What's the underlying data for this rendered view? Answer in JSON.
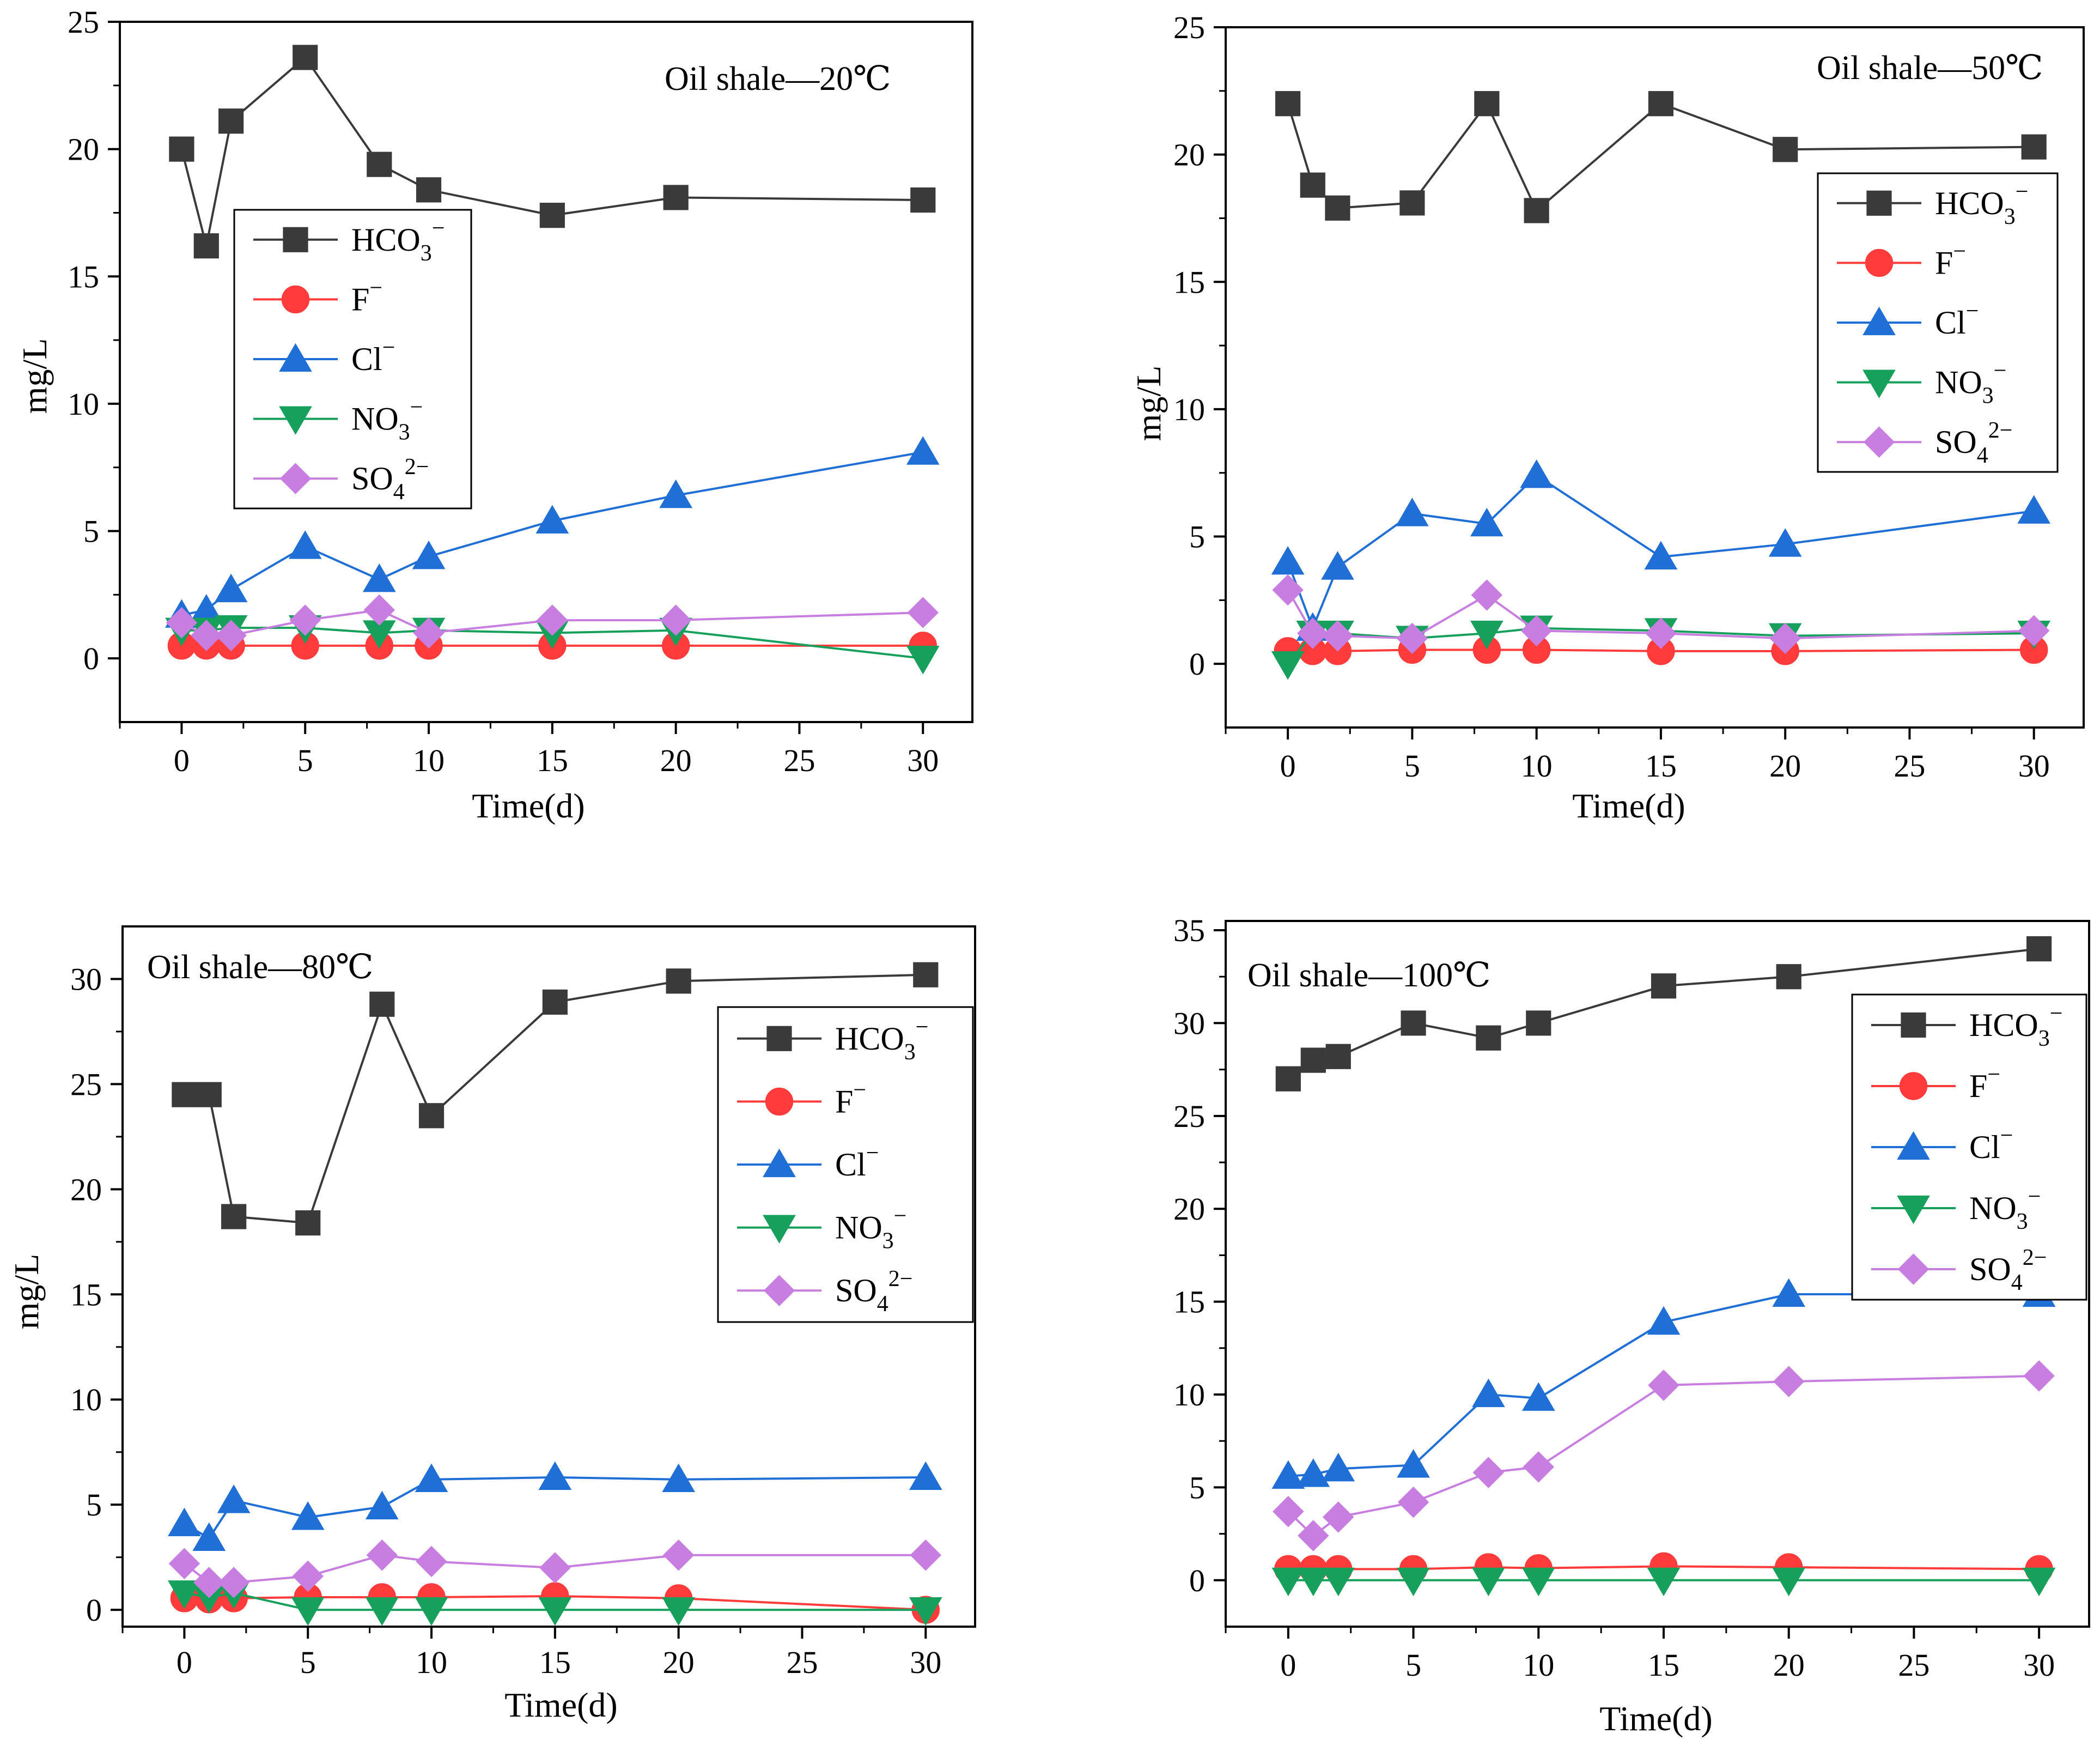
{
  "figure": {
    "panel_count": 4
  },
  "chart_data": [
    {
      "type": "line",
      "title": "Oil shale—20℃",
      "xlabel": "Time(d)",
      "ylabel": "mg/L",
      "xlim": [
        -2.5,
        32
      ],
      "ylim": [
        -2.5,
        25
      ],
      "xticks": [
        0,
        5,
        10,
        15,
        20,
        25,
        30
      ],
      "yticks": [
        0,
        5,
        10,
        15,
        20,
        25
      ],
      "legend": "upper-left-inset",
      "x": [
        0,
        1,
        2,
        5,
        8,
        10,
        15,
        20,
        30
      ],
      "series": [
        {
          "name": "HCO3−",
          "base": "HCO",
          "sub": "3",
          "sup": "−",
          "color": "#3a3a3a",
          "marker": "square",
          "values": [
            20.0,
            16.2,
            21.1,
            23.6,
            19.4,
            18.4,
            17.4,
            18.1,
            18.0
          ]
        },
        {
          "name": "F−",
          "base": "F",
          "sub": "",
          "sup": "−",
          "color": "#ff3b3b",
          "marker": "circle",
          "values": [
            0.5,
            0.5,
            0.5,
            0.5,
            0.5,
            0.5,
            0.5,
            0.5,
            0.5
          ]
        },
        {
          "name": "Cl−",
          "base": "Cl",
          "sub": "",
          "sup": "−",
          "color": "#1f6fd6",
          "marker": "triangle-up",
          "values": [
            1.7,
            1.9,
            2.7,
            4.4,
            3.1,
            4.0,
            5.4,
            6.4,
            8.1
          ]
        },
        {
          "name": "NO3−",
          "base": "NO",
          "sub": "3",
          "sup": "−",
          "color": "#17a05b",
          "marker": "triangle-down",
          "values": [
            1.1,
            1.1,
            1.2,
            1.2,
            1.0,
            1.1,
            1.0,
            1.1,
            0.0
          ]
        },
        {
          "name": "SO42−",
          "base": "SO",
          "sub": "4",
          "sup": "2−",
          "color": "#c77ee0",
          "marker": "diamond",
          "values": [
            1.4,
            0.9,
            0.9,
            1.5,
            1.9,
            1.0,
            1.5,
            1.5,
            1.8
          ]
        }
      ]
    },
    {
      "type": "line",
      "title": "Oil shale—50℃",
      "xlabel": "Time(d)",
      "ylabel": "mg/L",
      "xlim": [
        -2.5,
        32
      ],
      "ylim": [
        -2.5,
        25
      ],
      "xticks": [
        0,
        5,
        10,
        15,
        20,
        25,
        30
      ],
      "yticks": [
        0,
        5,
        10,
        15,
        20,
        25
      ],
      "legend": "right-inset",
      "x": [
        0,
        1,
        2,
        5,
        8,
        10,
        15,
        20,
        30
      ],
      "series": [
        {
          "name": "HCO3−",
          "base": "HCO",
          "sub": "3",
          "sup": "−",
          "color": "#3a3a3a",
          "marker": "square",
          "values": [
            22.0,
            18.8,
            17.9,
            18.1,
            22.0,
            17.8,
            22.0,
            20.2,
            20.3
          ]
        },
        {
          "name": "F−",
          "base": "F",
          "sub": "",
          "sup": "−",
          "color": "#ff3b3b",
          "marker": "circle",
          "values": [
            0.5,
            0.5,
            0.5,
            0.55,
            0.55,
            0.55,
            0.5,
            0.5,
            0.55
          ]
        },
        {
          "name": "Cl−",
          "base": "Cl",
          "sub": "",
          "sup": "−",
          "color": "#1f6fd6",
          "marker": "triangle-up",
          "values": [
            4.0,
            1.4,
            3.8,
            5.9,
            5.5,
            7.4,
            4.2,
            4.7,
            6.0
          ]
        },
        {
          "name": "NO3−",
          "base": "NO",
          "sub": "3",
          "sup": "−",
          "color": "#17a05b",
          "marker": "triangle-down",
          "values": [
            0.0,
            1.2,
            1.2,
            1.0,
            1.2,
            1.4,
            1.3,
            1.1,
            1.2
          ]
        },
        {
          "name": "SO42−",
          "base": "SO",
          "sub": "4",
          "sup": "2−",
          "color": "#c77ee0",
          "marker": "diamond",
          "values": [
            2.9,
            1.2,
            1.1,
            1.0,
            2.7,
            1.3,
            1.2,
            1.0,
            1.3
          ]
        }
      ]
    },
    {
      "type": "line",
      "title": "Oil shale—80℃",
      "xlabel": "Time(d)",
      "ylabel": "mg/L",
      "xlim": [
        -2.5,
        32
      ],
      "ylim": [
        -0.8,
        32.5
      ],
      "xticks": [
        0,
        5,
        10,
        15,
        20,
        25,
        30
      ],
      "yticks": [
        0,
        5,
        10,
        15,
        20,
        25,
        30
      ],
      "legend": "right-inset",
      "x": [
        0,
        1,
        2,
        5,
        8,
        10,
        15,
        20,
        30
      ],
      "series": [
        {
          "name": "HCO3−",
          "base": "HCO",
          "sub": "3",
          "sup": "−",
          "color": "#3a3a3a",
          "marker": "square",
          "values": [
            24.5,
            24.5,
            18.7,
            18.4,
            28.8,
            23.5,
            28.9,
            29.9,
            30.2
          ]
        },
        {
          "name": "F−",
          "base": "F",
          "sub": "",
          "sup": "−",
          "color": "#ff3b3b",
          "marker": "circle",
          "values": [
            0.55,
            0.5,
            0.55,
            0.6,
            0.6,
            0.6,
            0.65,
            0.55,
            0.0
          ]
        },
        {
          "name": "Cl−",
          "base": "Cl",
          "sub": "",
          "sup": "−",
          "color": "#1f6fd6",
          "marker": "triangle-up",
          "values": [
            4.1,
            3.4,
            5.2,
            4.4,
            4.9,
            6.2,
            6.3,
            6.2,
            6.3
          ]
        },
        {
          "name": "NO3−",
          "base": "NO",
          "sub": "3",
          "sup": "−",
          "color": "#17a05b",
          "marker": "triangle-down",
          "values": [
            0.8,
            0.6,
            0.8,
            0.0,
            0.0,
            0.0,
            0.0,
            0.0,
            0.0
          ]
        },
        {
          "name": "SO42−",
          "base": "SO",
          "sub": "4",
          "sup": "2−",
          "color": "#c77ee0",
          "marker": "diamond",
          "values": [
            2.2,
            1.3,
            1.3,
            1.6,
            2.6,
            2.3,
            2.0,
            2.6,
            2.6
          ]
        }
      ]
    },
    {
      "type": "line",
      "title": "Oil shale—100℃",
      "xlabel": "Time(d)",
      "ylabel": "",
      "xlim": [
        -2.5,
        32
      ],
      "ylim": [
        -2.5,
        35.5
      ],
      "xticks": [
        0,
        5,
        10,
        15,
        20,
        25,
        30
      ],
      "yticks": [
        0,
        5,
        10,
        15,
        20,
        25,
        30,
        35
      ],
      "legend": "right-inset",
      "x": [
        0,
        1,
        2,
        5,
        8,
        10,
        15,
        20,
        30
      ],
      "series": [
        {
          "name": "HCO3−",
          "base": "HCO",
          "sub": "3",
          "sup": "−",
          "color": "#3a3a3a",
          "marker": "square",
          "values": [
            27.0,
            28.0,
            28.2,
            30.0,
            29.2,
            30.0,
            32.0,
            32.5,
            34.0
          ]
        },
        {
          "name": "F−",
          "base": "F",
          "sub": "",
          "sup": "−",
          "color": "#ff3b3b",
          "marker": "circle",
          "values": [
            0.6,
            0.6,
            0.6,
            0.6,
            0.7,
            0.65,
            0.75,
            0.7,
            0.6
          ]
        },
        {
          "name": "Cl−",
          "base": "Cl",
          "sub": "",
          "sup": "−",
          "color": "#1f6fd6",
          "marker": "triangle-up",
          "values": [
            5.6,
            5.7,
            6.0,
            6.2,
            10.0,
            9.8,
            13.9,
            15.4,
            15.4
          ]
        },
        {
          "name": "NO3−",
          "base": "NO",
          "sub": "3",
          "sup": "−",
          "color": "#17a05b",
          "marker": "triangle-down",
          "values": [
            0.0,
            0.0,
            0.0,
            0.0,
            0.0,
            0.0,
            0.0,
            0.0,
            0.0
          ]
        },
        {
          "name": "SO42−",
          "base": "SO",
          "sub": "4",
          "sup": "2−",
          "color": "#c77ee0",
          "marker": "diamond",
          "values": [
            3.7,
            2.4,
            3.4,
            4.2,
            5.8,
            6.1,
            10.5,
            10.7,
            11.0
          ]
        }
      ]
    }
  ]
}
